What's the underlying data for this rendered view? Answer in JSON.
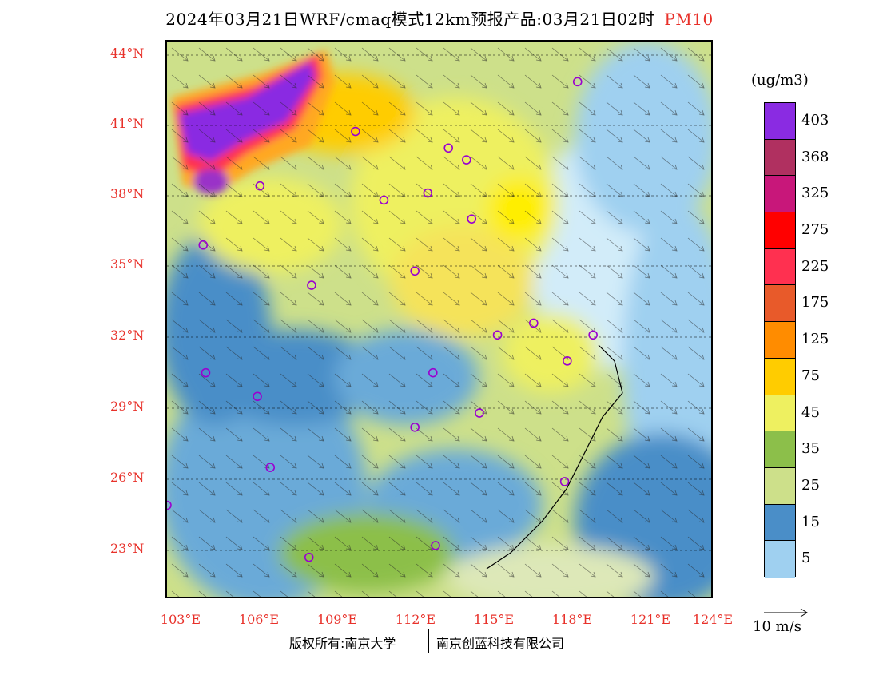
{
  "title": {
    "main": "2024年03月21日WRF/cmaq模式12km预报产品:03月21日02时",
    "species": "PM10"
  },
  "axes": {
    "lat_labels": [
      "44°N",
      "41°N",
      "38°N",
      "35°N",
      "32°N",
      "29°N",
      "26°N",
      "23°N"
    ],
    "lon_labels": [
      "103°E",
      "106°E",
      "109°E",
      "112°E",
      "115°E",
      "118°E",
      "121°E",
      "124°E"
    ]
  },
  "legend": {
    "unit": "(ug/m3)",
    "labels": [
      "403",
      "368",
      "325",
      "275",
      "225",
      "175",
      "125",
      "75",
      "45",
      "35",
      "25",
      "15",
      "5"
    ],
    "colors": [
      "#8a2be2",
      "#9a30c8",
      "#b03060",
      "#c8177a",
      "#ff0000",
      "#ff3050",
      "#ff6666",
      "#e85a2a",
      "#ff8c00",
      "#ffa820",
      "#ffcc00",
      "#ffee00",
      "#f5e35a",
      "#eef060",
      "#6aa83a",
      "#8cbf4a",
      "#b5d56a",
      "#cde08a",
      "#dde8b8",
      "#4a8ec8",
      "#6aaad8",
      "#9fd0f0",
      "#d2ecf9",
      "#ffffff"
    ],
    "wind_scale": "10 m/s"
  },
  "copyright": {
    "left": "版权所有:南京大学",
    "right": "南京创蓝科技有限公司"
  },
  "map": {
    "cities": [
      [
        118.7,
        42.9
      ],
      [
        110.1,
        40.8
      ],
      [
        113.7,
        40.1
      ],
      [
        114.4,
        39.6
      ],
      [
        106.4,
        38.5
      ],
      [
        111.2,
        37.9
      ],
      [
        112.9,
        38.2
      ],
      [
        114.6,
        37.1
      ],
      [
        104.2,
        36.0
      ],
      [
        112.4,
        34.9
      ],
      [
        108.4,
        34.3
      ],
      [
        117.0,
        32.7
      ],
      [
        115.6,
        32.2
      ],
      [
        119.3,
        32.2
      ],
      [
        118.3,
        31.1
      ],
      [
        104.3,
        30.6
      ],
      [
        113.1,
        30.6
      ],
      [
        106.3,
        29.6
      ],
      [
        114.9,
        28.9
      ],
      [
        112.4,
        28.3
      ],
      [
        106.8,
        26.6
      ],
      [
        118.2,
        26.0
      ],
      [
        102.8,
        25.0
      ],
      [
        108.3,
        22.8
      ],
      [
        113.2,
        23.3
      ]
    ]
  }
}
